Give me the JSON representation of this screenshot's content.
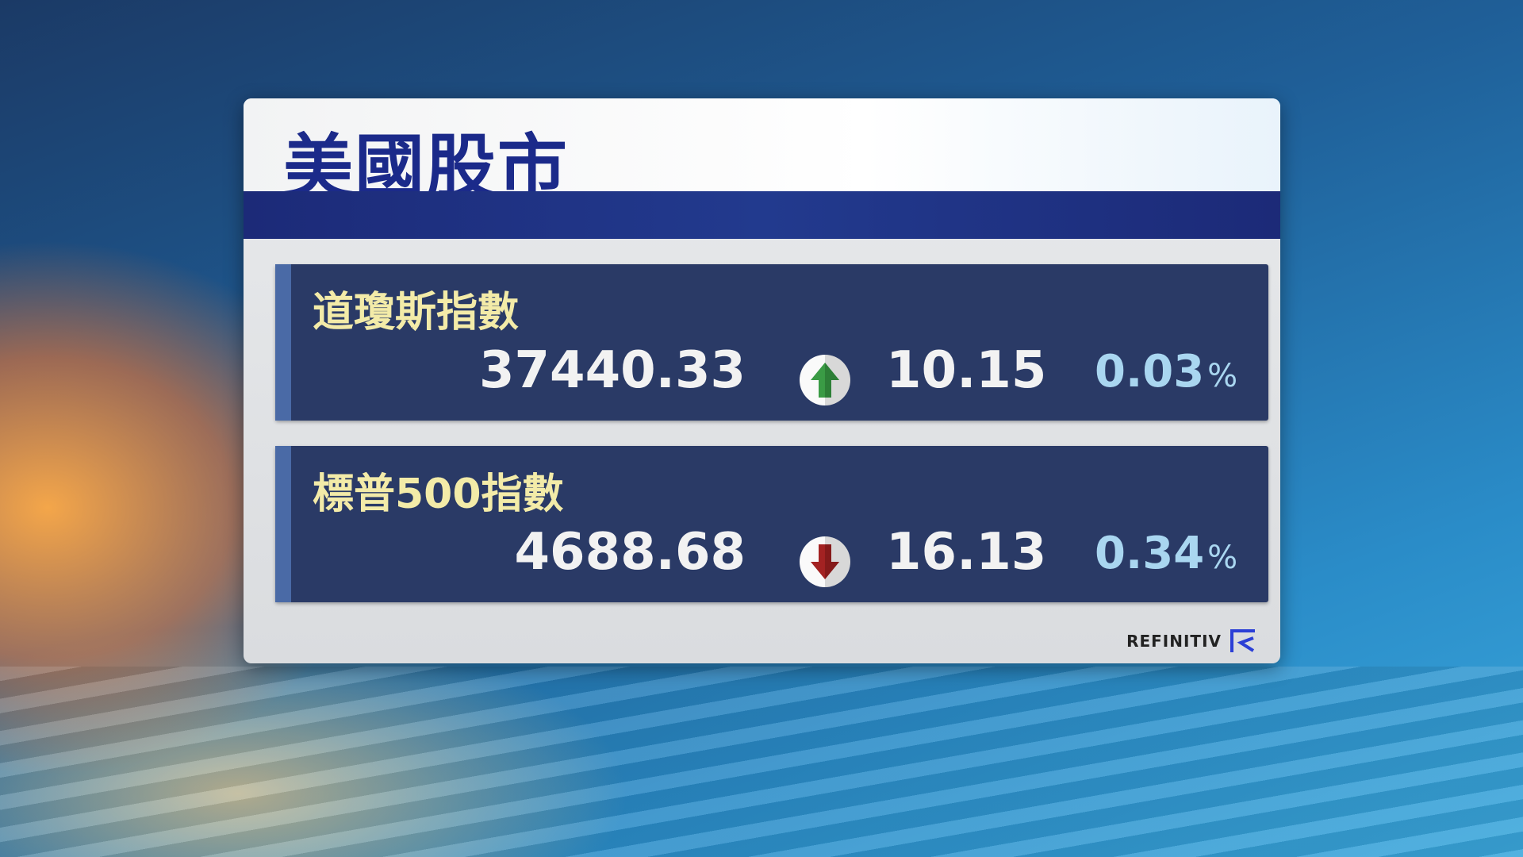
{
  "title": "美國股市",
  "indices": [
    {
      "name": "道瓊斯指數",
      "last": "37440.33",
      "direction": "up",
      "change": "10.15",
      "percent": "0.03",
      "percent_sign": "%",
      "arrow_color": "#3a9b45"
    },
    {
      "name": "標普500指數",
      "last": "4688.68",
      "direction": "down",
      "change": "16.13",
      "percent": "0.34",
      "percent_sign": "%",
      "arrow_color": "#a32222"
    }
  ],
  "source_logo": "REFINITIV",
  "colors": {
    "title": "#1b2a8a",
    "row_bg": "#2a3a66",
    "label": "#f3eba8",
    "percent": "#a9d6f0"
  }
}
